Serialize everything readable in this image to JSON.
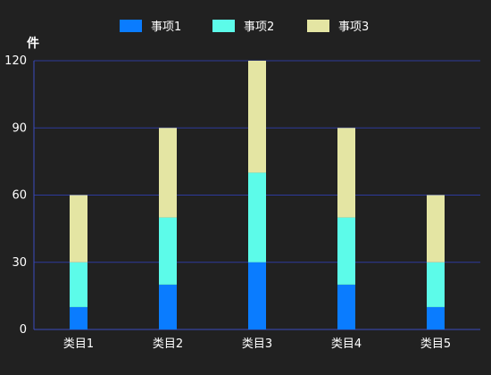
{
  "chart_data": {
    "type": "bar",
    "stacked": true,
    "categories": [
      "类目1",
      "类目2",
      "类目3",
      "类目4",
      "类目5"
    ],
    "series": [
      {
        "name": "事项1",
        "color": "#0a7cff",
        "values": [
          10,
          20,
          30,
          20,
          10
        ]
      },
      {
        "name": "事项2",
        "color": "#5cfbe9",
        "values": [
          20,
          30,
          40,
          30,
          20
        ]
      },
      {
        "name": "事项3",
        "color": "#e4e5a3",
        "values": [
          30,
          40,
          50,
          40,
          30
        ]
      }
    ],
    "ylabel": "件",
    "ylim": [
      0,
      120
    ],
    "yticks": [
      "0",
      "30",
      "60",
      "90",
      "120"
    ],
    "grid": true,
    "legend_position": "top-center",
    "colors": {
      "background": "#212121",
      "grid": "#2d3a9c",
      "axis": "#3b4cc0",
      "text": "#ffffff"
    }
  }
}
